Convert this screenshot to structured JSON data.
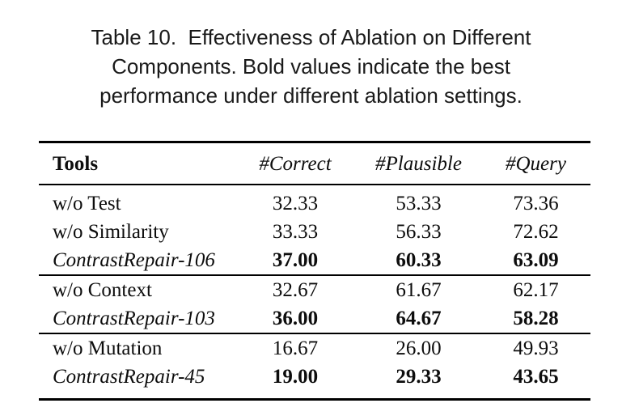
{
  "caption": {
    "lines": [
      "Table 10.  Effectiveness of Ablation on Different",
      "Components. Bold values indicate the best",
      "performance under different ablation settings."
    ]
  },
  "table": {
    "headers": [
      "Tools",
      "#Correct",
      "#Plausible",
      "#Query"
    ],
    "rows": [
      {
        "cells": [
          "w/o Test",
          "32.33",
          "53.33",
          "73.36"
        ]
      },
      {
        "cells": [
          "w/o Similarity",
          "33.33",
          "56.33",
          "72.62"
        ]
      },
      {
        "cells": [
          "ContrastRepair-106",
          "37.00",
          "60.33",
          "63.09"
        ]
      },
      {
        "cells": [
          "w/o Context",
          "32.67",
          "61.67",
          "62.17"
        ]
      },
      {
        "cells": [
          "ContrastRepair-103",
          "36.00",
          "64.67",
          "58.28"
        ]
      },
      {
        "cells": [
          "w/o Mutation",
          "16.67",
          "26.00",
          "49.93"
        ]
      },
      {
        "cells": [
          "ContrastRepair-45",
          "19.00",
          "29.33",
          "43.65"
        ]
      }
    ]
  }
}
